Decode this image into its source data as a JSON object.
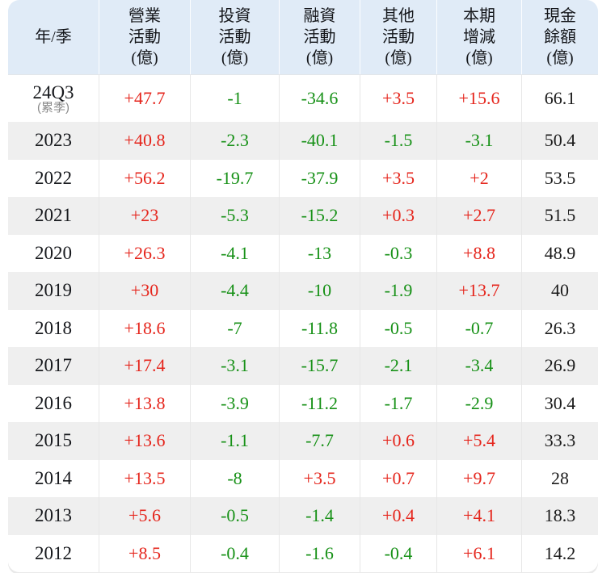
{
  "colors": {
    "positive_red": "#e5251c",
    "negative_green": "#179117",
    "neutral_text": "#1b1b1b",
    "header_bg": "#e0ebf7",
    "stripe_row": "#efefef"
  },
  "table": {
    "columns": [
      "年/季",
      "營業\n活動\n(億)",
      "投資\n活動\n(億)",
      "融資\n活動\n(億)",
      "其他\n活動\n(億)",
      "本期\n增減\n(億)",
      "現金\n餘額\n(億)"
    ],
    "rows": [
      {
        "period": "24Q3",
        "period_note": "(累季)",
        "values": [
          "+47.7",
          "-1",
          "-34.6",
          "+3.5",
          "+15.6",
          "66.1"
        ]
      },
      {
        "period": "2023",
        "values": [
          "+40.8",
          "-2.3",
          "-40.1",
          "-1.5",
          "-3.1",
          "50.4"
        ]
      },
      {
        "period": "2022",
        "values": [
          "+56.2",
          "-19.7",
          "-37.9",
          "+3.5",
          "+2",
          "53.5"
        ]
      },
      {
        "period": "2021",
        "values": [
          "+23",
          "-5.3",
          "-15.2",
          "+0.3",
          "+2.7",
          "51.5"
        ]
      },
      {
        "period": "2020",
        "values": [
          "+26.3",
          "-4.1",
          "-13",
          "-0.3",
          "+8.8",
          "48.9"
        ]
      },
      {
        "period": "2019",
        "values": [
          "+30",
          "-4.4",
          "-10",
          "-1.9",
          "+13.7",
          "40"
        ]
      },
      {
        "period": "2018",
        "values": [
          "+18.6",
          "-7",
          "-11.8",
          "-0.5",
          "-0.7",
          "26.3"
        ]
      },
      {
        "period": "2017",
        "values": [
          "+17.4",
          "-3.1",
          "-15.7",
          "-2.1",
          "-3.4",
          "26.9"
        ]
      },
      {
        "period": "2016",
        "values": [
          "+13.8",
          "-3.9",
          "-11.2",
          "-1.7",
          "-2.9",
          "30.4"
        ]
      },
      {
        "period": "2015",
        "values": [
          "+13.6",
          "-1.1",
          "-7.7",
          "+0.6",
          "+5.4",
          "33.3"
        ]
      },
      {
        "period": "2014",
        "values": [
          "+13.5",
          "-8",
          "+3.5",
          "+0.7",
          "+9.7",
          "28"
        ]
      },
      {
        "period": "2013",
        "values": [
          "+5.6",
          "-0.5",
          "-1.4",
          "+0.4",
          "+4.1",
          "18.3"
        ]
      },
      {
        "period": "2012",
        "values": [
          "+8.5",
          "-0.4",
          "-1.6",
          "-0.4",
          "+6.1",
          "14.2"
        ]
      }
    ]
  },
  "chart_data": {
    "type": "table",
    "title": "",
    "columns": [
      "年/季",
      "營業活動(億)",
      "投資活動(億)",
      "融資活動(億)",
      "其他活動(億)",
      "本期增減(億)",
      "現金餘額(億)"
    ],
    "rows": [
      [
        "24Q3 (累季)",
        "+47.7",
        "-1",
        "-34.6",
        "+3.5",
        "+15.6",
        "66.1"
      ],
      [
        "2023",
        "+40.8",
        "-2.3",
        "-40.1",
        "-1.5",
        "-3.1",
        "50.4"
      ],
      [
        "2022",
        "+56.2",
        "-19.7",
        "-37.9",
        "+3.5",
        "+2",
        "53.5"
      ],
      [
        "2021",
        "+23",
        "-5.3",
        "-15.2",
        "+0.3",
        "+2.7",
        "51.5"
      ],
      [
        "2020",
        "+26.3",
        "-4.1",
        "-13",
        "-0.3",
        "+8.8",
        "48.9"
      ],
      [
        "2019",
        "+30",
        "-4.4",
        "-10",
        "-1.9",
        "+13.7",
        "40"
      ],
      [
        "2018",
        "+18.6",
        "-7",
        "-11.8",
        "-0.5",
        "-0.7",
        "26.3"
      ],
      [
        "2017",
        "+17.4",
        "-3.1",
        "-15.7",
        "-2.1",
        "-3.4",
        "26.9"
      ],
      [
        "2016",
        "+13.8",
        "-3.9",
        "-11.2",
        "-1.7",
        "-2.9",
        "30.4"
      ],
      [
        "2015",
        "+13.6",
        "-1.1",
        "-7.7",
        "+0.6",
        "+5.4",
        "33.3"
      ],
      [
        "2014",
        "+13.5",
        "-8",
        "+3.5",
        "+0.7",
        "+9.7",
        "28"
      ],
      [
        "2013",
        "+5.6",
        "-0.5",
        "-1.4",
        "+0.4",
        "+4.1",
        "18.3"
      ],
      [
        "2012",
        "+8.5",
        "-0.4",
        "-1.6",
        "-0.4",
        "+6.1",
        "14.2"
      ]
    ],
    "value_color_convention": {
      "plus_values": "red",
      "minus_values": "green",
      "balance_column": "black"
    }
  }
}
